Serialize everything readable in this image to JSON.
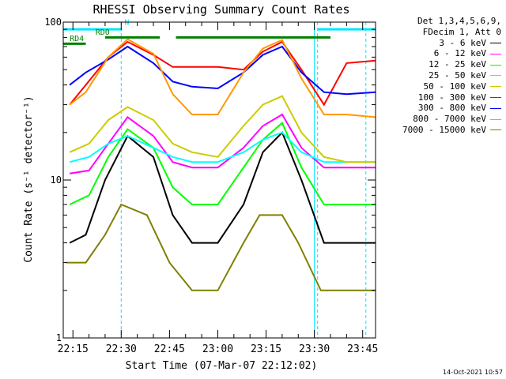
{
  "header": {
    "detector": "Det 1,3,4,5,6,9,",
    "fdecim": "FDecim 1, Att 0"
  },
  "footer": {
    "timestamp": "14-Oct-2021 10:57"
  },
  "chart_data": {
    "type": "line",
    "title": "RHESSI Observing Summary Count Rates",
    "xlabel": "Start Time (07-Mar-07 22:12:02)",
    "ylabel": "Count Rate (s⁻¹ detector⁻¹)",
    "yscale": "log",
    "ylim": [
      1,
      100
    ],
    "y_ticks": [
      "1",
      "10",
      "100"
    ],
    "xlim": [
      "22:12",
      "23:49"
    ],
    "x_ticks": [
      "22:15",
      "22:30",
      "22:45",
      "23:00",
      "23:15",
      "23:30",
      "23:45"
    ],
    "grid": false,
    "legend_placement": "outside-right",
    "flags": {
      "night_vlines": [
        "22:30",
        "23:31",
        "23:46"
      ],
      "saa_vlines": [
        "22:12",
        "23:30"
      ],
      "labels": [
        {
          "text": "N",
          "time": "22:31",
          "color": "#00e5ff"
        },
        {
          "text": "RD0",
          "time": "22:22",
          "color": "#008000"
        },
        {
          "text": "RD4",
          "time": "22:14",
          "color": "#008000"
        }
      ],
      "bars": [
        {
          "name": "n-bar",
          "color": "#00e5ff",
          "level": 90,
          "segments": [
            [
              "22:12",
              "22:30"
            ],
            [
              "23:31",
              "23:49"
            ]
          ]
        },
        {
          "name": "rd0-bar",
          "color": "#008000",
          "level": 80,
          "segments": [
            [
              "22:25",
              "22:42"
            ],
            [
              "22:47",
              "23:07"
            ],
            [
              "23:07",
              "23:35"
            ]
          ]
        },
        {
          "name": "rd4-bar",
          "color": "#008000",
          "level": 73,
          "segments": [
            [
              "22:12",
              "22:19"
            ]
          ]
        }
      ]
    },
    "series": [
      {
        "name": "3 - 6 keV",
        "color": "#000000",
        "x": [
          "22:14",
          "22:19",
          "22:25",
          "22:32",
          "22:40",
          "22:46",
          "22:52",
          "23:00",
          "23:08",
          "23:14",
          "23:20",
          "23:26",
          "23:33",
          "23:40",
          "23:49"
        ],
        "values": [
          4,
          4.5,
          10,
          19,
          14,
          6,
          4,
          4,
          7,
          15,
          20,
          10,
          4,
          4,
          4
        ]
      },
      {
        "name": "6 - 12 keV",
        "color": "#ff00ff",
        "x": [
          "22:14",
          "22:20",
          "22:26",
          "22:32",
          "22:40",
          "22:46",
          "22:52",
          "23:00",
          "23:08",
          "23:14",
          "23:20",
          "23:26",
          "23:33",
          "23:40",
          "23:49"
        ],
        "values": [
          11,
          11.5,
          17,
          25,
          19,
          13,
          12,
          12,
          16,
          22,
          26,
          16,
          12,
          12,
          12
        ]
      },
      {
        "name": "12 - 25 keV",
        "color": "#00ff00",
        "x": [
          "22:14",
          "22:20",
          "22:26",
          "22:32",
          "22:40",
          "22:46",
          "22:52",
          "23:00",
          "23:08",
          "23:14",
          "23:20",
          "23:26",
          "23:33",
          "23:40",
          "23:49"
        ],
        "values": [
          7,
          8,
          14,
          21,
          16,
          9,
          7,
          7,
          12,
          18,
          23,
          12,
          7,
          7,
          7
        ]
      },
      {
        "name": "25 - 50 keV",
        "color": "#00ffff",
        "x": [
          "22:14",
          "22:20",
          "22:26",
          "22:32",
          "22:40",
          "22:46",
          "22:52",
          "23:00",
          "23:08",
          "23:14",
          "23:20",
          "23:26",
          "23:33",
          "23:40",
          "23:49"
        ],
        "values": [
          13,
          14,
          17,
          19,
          16,
          14,
          13,
          13,
          15,
          18,
          20,
          15,
          13,
          13,
          13
        ]
      },
      {
        "name": "50 - 100 keV",
        "color": "#cccc00",
        "x": [
          "22:14",
          "22:20",
          "22:26",
          "22:32",
          "22:40",
          "22:46",
          "22:52",
          "23:00",
          "23:08",
          "23:14",
          "23:20",
          "23:26",
          "23:33",
          "23:40",
          "23:49"
        ],
        "values": [
          15,
          17,
          24,
          29,
          24,
          17,
          15,
          14,
          22,
          30,
          34,
          20,
          14,
          13,
          13
        ]
      },
      {
        "name": "100 - 300 keV",
        "color": "#ff0000",
        "x": [
          "22:14",
          "22:19",
          "22:26",
          "22:32",
          "22:40",
          "22:46",
          "22:52",
          "23:00",
          "23:08",
          "23:14",
          "23:20",
          "23:26",
          "23:33",
          "23:40",
          "23:49"
        ],
        "values": [
          30,
          40,
          60,
          75,
          62,
          52,
          52,
          52,
          50,
          65,
          75,
          50,
          30,
          55,
          57
        ]
      },
      {
        "name": "300 - 800 keV",
        "color": "#0000ff",
        "x": [
          "22:14",
          "22:19",
          "22:26",
          "22:32",
          "22:40",
          "22:46",
          "22:52",
          "23:00",
          "23:08",
          "23:14",
          "23:20",
          "23:26",
          "23:33",
          "23:40",
          "23:49"
        ],
        "values": [
          40,
          48,
          58,
          70,
          55,
          42,
          39,
          38,
          48,
          62,
          70,
          48,
          36,
          35,
          36
        ]
      },
      {
        "name": "800 - 7000 keV",
        "color": "#ff9900",
        "x": [
          "22:14",
          "22:19",
          "22:26",
          "22:32",
          "22:40",
          "22:46",
          "22:52",
          "23:00",
          "23:08",
          "23:14",
          "23:20",
          "23:26",
          "23:33",
          "23:40",
          "23:49"
        ],
        "values": [
          30,
          36,
          60,
          78,
          63,
          35,
          26,
          26,
          48,
          68,
          77,
          44,
          26,
          26,
          25
        ]
      },
      {
        "name": "7000 - 15000 keV",
        "color": "#808000",
        "x": [
          "22:13",
          "22:19",
          "22:25",
          "22:30",
          "22:38",
          "22:45",
          "22:52",
          "23:00",
          "23:08",
          "23:13",
          "23:20",
          "23:25",
          "23:32",
          "23:40",
          "23:49"
        ],
        "values": [
          3,
          3,
          4.5,
          7,
          6,
          3,
          2,
          2,
          4,
          6,
          6,
          4,
          2,
          2,
          2
        ]
      }
    ]
  }
}
